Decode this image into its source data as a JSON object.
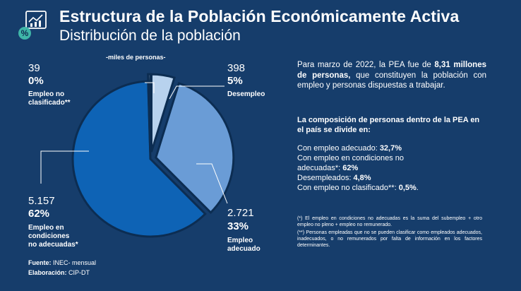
{
  "header": {
    "title": "Estructura de la Población Económicamente Activa",
    "subtitle": "Distribución de la población"
  },
  "colors": {
    "background": "#163d6b",
    "adecuado": "#6a9cd6",
    "no_adecuado": "#0e63b5",
    "desempleo": "#b8d2ee",
    "no_clasificado": "#d9e7f6"
  },
  "chart_data": {
    "type": "pie",
    "title": "",
    "units_label": "-miles de personas-",
    "slices": [
      {
        "name": "Desempleo",
        "value": 398,
        "value_label": "398",
        "percent_label": "5%"
      },
      {
        "name": "Empleo adecuado",
        "value": 2721,
        "value_label": "2.721",
        "percent_label": "33%"
      },
      {
        "name": "Empleo en condiciones no adecuadas*",
        "value": 5157,
        "value_label": "5.157",
        "percent_label": "62%"
      },
      {
        "name": "Empleo no clasificado**",
        "value": 39,
        "value_label": "39",
        "percent_label": "0%"
      }
    ]
  },
  "labels": {
    "no_clasificado": {
      "value": "39",
      "percent": "0%",
      "line1": "Empleo no",
      "line2": "clasificado**"
    },
    "desempleo": {
      "value": "398",
      "percent": "5%",
      "line1": "Desempleo"
    },
    "adecuado": {
      "value": "2.721",
      "percent": "33%",
      "line1": "Empleo",
      "line2": "adecuado"
    },
    "no_adecuado": {
      "value": "5.157",
      "percent": "62%",
      "line1": "Empleo en",
      "line2": "condiciones",
      "line3": "no adecuadas*"
    }
  },
  "source": {
    "fuente_label": "Fuente:",
    "fuente_value": " INEC- mensual",
    "elaboracion_label": "Elaboración:",
    "elaboracion_value": " CIP-DT"
  },
  "summary": {
    "p1": "Para  marzo de 2022, la PEA fue de ",
    "p1_bold_a": "8,31",
    "p1_bold_b": "millones de personas,",
    "p1_rest": " que constituyen la población con empleo y personas dispuestas a trabajar."
  },
  "composition": {
    "title": "La composición de personas dentro de la PEA en el país se divide en:",
    "items": [
      {
        "text": "Con empleo adecuado: ",
        "value": "32,7%"
      },
      {
        "text": "Con empleo en condiciones no adecuadas*: ",
        "value": "62%"
      },
      {
        "text": "Desempleados: ",
        "value": "4,8%"
      },
      {
        "text": "Con empleo no clasificado**: ",
        "value": "0,5%",
        "suffix": "."
      }
    ]
  },
  "notes": {
    "n1": "(*) El empleo en condiciones no adecuadas es la suma del subempleo + otro empleo no pleno + empleo no remunerado.",
    "n2": "(**) Personas empleadas que no se pueden clasificar como empleados adecuados, inadecuados, o no remunerados por falta de información en los factores determinantes."
  }
}
